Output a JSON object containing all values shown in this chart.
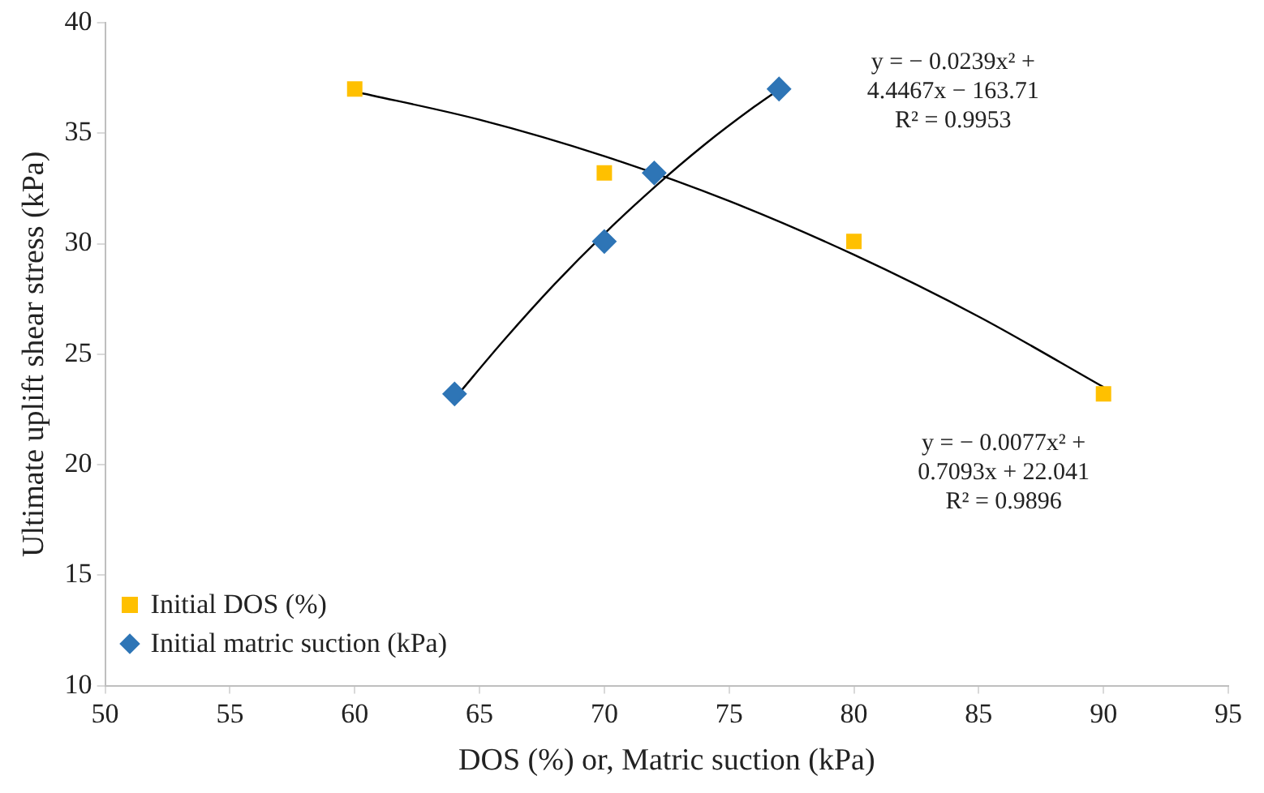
{
  "chart_data": {
    "type": "scatter",
    "xlabel": "DOS (%) or, Matric suction (kPa)",
    "ylabel": "Ultimate uplift shear stress (kPa)",
    "xlim": [
      50,
      95
    ],
    "xticks": [
      50,
      55,
      60,
      65,
      70,
      75,
      80,
      85,
      90,
      95
    ],
    "ylim": [
      10,
      40
    ],
    "yticks": [
      10,
      15,
      20,
      25,
      30,
      35,
      40
    ],
    "grid": false,
    "legend": "bottom left",
    "series": [
      {
        "name": "Initial DOS (%)",
        "marker": "square",
        "color": "#ffc000",
        "x": [
          60,
          70,
          80,
          90
        ],
        "values": [
          37,
          33.2,
          30.1,
          23.2
        ]
      },
      {
        "name": "Initial matric suction (kPa)",
        "marker": "diamond",
        "color": "#2e75b6",
        "x": [
          64,
          70,
          72,
          77
        ],
        "values": [
          23.2,
          30.1,
          33.2,
          37
        ]
      },
      {
        "type": "line",
        "marker": "none",
        "color": "#000000",
        "x": [
          60,
          65,
          70,
          75,
          80,
          85,
          90
        ],
        "values": [
          36.88,
          35.61,
          33.96,
          31.93,
          29.5,
          26.7,
          23.51
        ]
      },
      {
        "type": "line",
        "marker": "none",
        "color": "#000000",
        "x": [
          64,
          66,
          68,
          70,
          72,
          74,
          76,
          77
        ],
        "values": [
          22.99,
          25.66,
          28.16,
          30.45,
          32.55,
          34.47,
          36.19,
          36.98
        ]
      }
    ],
    "annotations": [
      "y = − 0.0239x² +",
      "4.4467x − 163.71",
      "R² = 0.9953",
      "y = − 0.0077x² +",
      "0.7093x + 22.041",
      "R² = 0.9896"
    ]
  }
}
